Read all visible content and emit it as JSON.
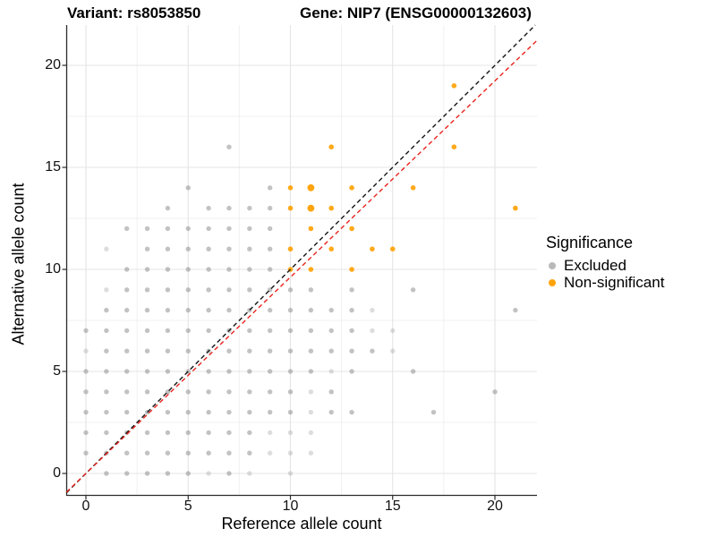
{
  "header": {
    "title_left": "Variant: rs8053850",
    "title_right": "Gene: NIP7 (ENSG00000132603)"
  },
  "chart_data": {
    "type": "scatter",
    "xlabel": "Reference allele count",
    "ylabel": "Alternative allele count",
    "x_ticks": [
      0,
      5,
      10,
      15,
      20
    ],
    "y_ticks": [
      0,
      5,
      10,
      15,
      20
    ],
    "xlim": [
      -1.5,
      22.1
    ],
    "ylim": [
      -1.1,
      22.0
    ],
    "grid": "major+minor",
    "legend": {
      "title": "Significance",
      "position": "right",
      "entries": [
        {
          "id": "excluded",
          "label": "Excluded",
          "color": "#b9b9b9"
        },
        {
          "id": "non-significant",
          "label": "Non-significant",
          "color": "#ffa40d"
        }
      ]
    },
    "series": [
      {
        "name": "Excluded",
        "color": "#8f8f8f",
        "points": [
          [
            1,
            0
          ],
          [
            2,
            0
          ],
          [
            3,
            0
          ],
          [
            4,
            0
          ],
          [
            5,
            0
          ],
          [
            7,
            0
          ],
          [
            0,
            1
          ],
          [
            1,
            1
          ],
          [
            2,
            1
          ],
          [
            3,
            1
          ],
          [
            4,
            1
          ],
          [
            5,
            1
          ],
          [
            6,
            1
          ],
          [
            7,
            1
          ],
          [
            8,
            1
          ],
          [
            0,
            2
          ],
          [
            1,
            2
          ],
          [
            2,
            2
          ],
          [
            3,
            2
          ],
          [
            4,
            2
          ],
          [
            5,
            2
          ],
          [
            6,
            2
          ],
          [
            7,
            2
          ],
          [
            8,
            2
          ],
          [
            0,
            3
          ],
          [
            1,
            3
          ],
          [
            2,
            3
          ],
          [
            3,
            3
          ],
          [
            4,
            3
          ],
          [
            5,
            3
          ],
          [
            6,
            3
          ],
          [
            7,
            3
          ],
          [
            8,
            3
          ],
          [
            9,
            3
          ],
          [
            10,
            3
          ],
          [
            12,
            3
          ],
          [
            13,
            3
          ],
          [
            17,
            3
          ],
          [
            0,
            4
          ],
          [
            1,
            4
          ],
          [
            2,
            4
          ],
          [
            3,
            4
          ],
          [
            4,
            4
          ],
          [
            5,
            4
          ],
          [
            6,
            4
          ],
          [
            7,
            4
          ],
          [
            8,
            4
          ],
          [
            9,
            4
          ],
          [
            10,
            4
          ],
          [
            12,
            4
          ],
          [
            20,
            4
          ],
          [
            0,
            5
          ],
          [
            1,
            5
          ],
          [
            2,
            5
          ],
          [
            3,
            5
          ],
          [
            4,
            5
          ],
          [
            5,
            5
          ],
          [
            6,
            5
          ],
          [
            7,
            5
          ],
          [
            8,
            5
          ],
          [
            9,
            5
          ],
          [
            10,
            5
          ],
          [
            11,
            5
          ],
          [
            13,
            5
          ],
          [
            16,
            5
          ],
          [
            1,
            6
          ],
          [
            2,
            6
          ],
          [
            3,
            6
          ],
          [
            4,
            6
          ],
          [
            5,
            6
          ],
          [
            6,
            6
          ],
          [
            7,
            6
          ],
          [
            8,
            6
          ],
          [
            9,
            6
          ],
          [
            10,
            6
          ],
          [
            11,
            6
          ],
          [
            12,
            6
          ],
          [
            13,
            6
          ],
          [
            14,
            6
          ],
          [
            0,
            7
          ],
          [
            1,
            7
          ],
          [
            2,
            7
          ],
          [
            3,
            7
          ],
          [
            4,
            7
          ],
          [
            5,
            7
          ],
          [
            6,
            7
          ],
          [
            7,
            7
          ],
          [
            8,
            7
          ],
          [
            9,
            7
          ],
          [
            10,
            7
          ],
          [
            11,
            7
          ],
          [
            12,
            7
          ],
          [
            13,
            7
          ],
          [
            1,
            8
          ],
          [
            2,
            8
          ],
          [
            3,
            8
          ],
          [
            4,
            8
          ],
          [
            5,
            8
          ],
          [
            6,
            8
          ],
          [
            7,
            8
          ],
          [
            8,
            8
          ],
          [
            9,
            8
          ],
          [
            10,
            8
          ],
          [
            11,
            8
          ],
          [
            12,
            8
          ],
          [
            13,
            8
          ],
          [
            21,
            8
          ],
          [
            2,
            9
          ],
          [
            3,
            9
          ],
          [
            4,
            9
          ],
          [
            5,
            9
          ],
          [
            6,
            9
          ],
          [
            7,
            9
          ],
          [
            8,
            9
          ],
          [
            9,
            9
          ],
          [
            10,
            9
          ],
          [
            11,
            9
          ],
          [
            13,
            9
          ],
          [
            16,
            9
          ],
          [
            2,
            10
          ],
          [
            3,
            10
          ],
          [
            4,
            10
          ],
          [
            5,
            10
          ],
          [
            6,
            10
          ],
          [
            7,
            10
          ],
          [
            8,
            10
          ],
          [
            9,
            10
          ],
          [
            3,
            11
          ],
          [
            4,
            11
          ],
          [
            5,
            11
          ],
          [
            6,
            11
          ],
          [
            7,
            11
          ],
          [
            8,
            11
          ],
          [
            9,
            11
          ],
          [
            2,
            12
          ],
          [
            3,
            12
          ],
          [
            4,
            12
          ],
          [
            5,
            12
          ],
          [
            6,
            12
          ],
          [
            7,
            12
          ],
          [
            8,
            12
          ],
          [
            9,
            12
          ],
          [
            4,
            13
          ],
          [
            6,
            13
          ],
          [
            7,
            13
          ],
          [
            8,
            13
          ],
          [
            9,
            13
          ],
          [
            5,
            14
          ],
          [
            9,
            14
          ],
          [
            7,
            16
          ]
        ],
        "points_light": [
          [
            6,
            0
          ],
          [
            8,
            0
          ],
          [
            10,
            0
          ],
          [
            9,
            1
          ],
          [
            10,
            1
          ],
          [
            11,
            1
          ],
          [
            9,
            2
          ],
          [
            10,
            2
          ],
          [
            11,
            2
          ],
          [
            11,
            3
          ],
          [
            11,
            4
          ],
          [
            12,
            5
          ],
          [
            0,
            6
          ],
          [
            15,
            6
          ],
          [
            14,
            7
          ],
          [
            15,
            7
          ],
          [
            14,
            8
          ],
          [
            1,
            9
          ],
          [
            1,
            11
          ]
        ]
      },
      {
        "name": "Non-significant",
        "color": "#ffa40d",
        "points": [
          [
            10,
            10
          ],
          [
            11,
            10
          ],
          [
            13,
            10
          ],
          [
            10,
            11
          ],
          [
            12,
            11
          ],
          [
            14,
            11
          ],
          [
            15,
            11
          ],
          [
            11,
            12
          ],
          [
            13,
            12
          ],
          [
            10,
            13
          ],
          [
            12,
            13
          ],
          [
            21,
            13
          ],
          [
            10,
            14
          ],
          [
            13,
            14
          ],
          [
            16,
            14
          ],
          [
            12,
            16
          ],
          [
            18,
            16
          ],
          [
            18,
            19
          ]
        ],
        "points_large": [
          [
            11,
            13
          ],
          [
            11,
            14
          ]
        ]
      }
    ],
    "lines": [
      {
        "name": "identity",
        "slope": 1.0,
        "intercept": 0,
        "color": "#141414",
        "style": "dashed"
      },
      {
        "name": "fit",
        "slope": 0.962,
        "intercept": 0,
        "color": "#e8231d",
        "style": "dashed"
      }
    ]
  }
}
